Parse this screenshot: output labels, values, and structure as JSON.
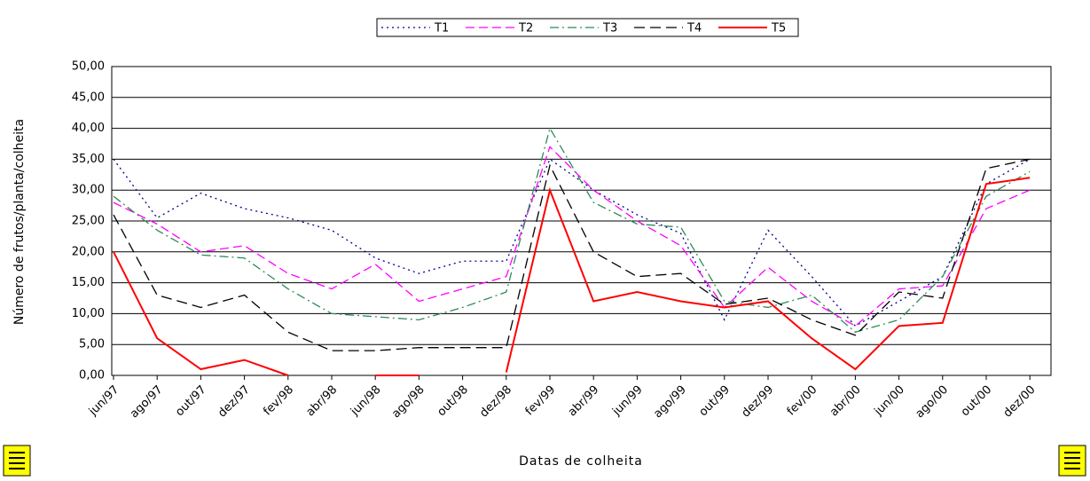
{
  "chart_data": {
    "type": "line",
    "x_label": "Datas de colheita",
    "y_label": "Número de frutos/planta/colheita",
    "categories": [
      "jun/97",
      "ago/97",
      "out/97",
      "dez/97",
      "fev/98",
      "abr/98",
      "jun/98",
      "ago/98",
      "out/98",
      "dez/98",
      "fev/99",
      "abr/99",
      "jun/99",
      "ago/99",
      "out/99",
      "dez/99",
      "fev/00",
      "abr/00",
      "jun/00",
      "ago/00",
      "out/00",
      "dez/00"
    ],
    "series": [
      {
        "name": "T1",
        "color": "#00008b",
        "dash": "dotted",
        "values": [
          35,
          25.5,
          29.5,
          27,
          25.5,
          23.5,
          19,
          16.5,
          18.5,
          18.5,
          35,
          30,
          26,
          23,
          9,
          23.5,
          16,
          8,
          12,
          16,
          31,
          35
        ]
      },
      {
        "name": "T2",
        "color": "#ff00ff",
        "dash": "dashed",
        "values": [
          28,
          24.5,
          20,
          21,
          16.5,
          14,
          18,
          12,
          14,
          16,
          37,
          30,
          25,
          21,
          11,
          17.5,
          12,
          8,
          14,
          14.5,
          27,
          30
        ]
      },
      {
        "name": "T3",
        "color": "#2e8b57",
        "dash": "dashdot",
        "values": [
          29,
          23.5,
          19.5,
          19,
          14,
          10,
          9.5,
          9,
          11,
          13.5,
          40,
          28,
          24.5,
          24,
          12,
          11,
          13,
          7,
          9,
          16,
          29,
          33
        ]
      },
      {
        "name": "T4",
        "color": "#000000",
        "dash": "longdash",
        "values": [
          26,
          13,
          11,
          13,
          7,
          4,
          4,
          4.5,
          4.5,
          4.5,
          34,
          20,
          16,
          16.5,
          11.5,
          12.5,
          9,
          6.5,
          13.5,
          12.5,
          33.5,
          35
        ]
      },
      {
        "name": "T5",
        "color": "#ff0000",
        "dash": "solid",
        "values": [
          20,
          6,
          1,
          2.5,
          0,
          null,
          0,
          0,
          null,
          0.5,
          30,
          12,
          13.5,
          12,
          11,
          12,
          6,
          1,
          8,
          8.5,
          31,
          32
        ]
      }
    ],
    "ylim": [
      0,
      50
    ],
    "yticks": [
      {
        "value": 0,
        "label": "0,00"
      },
      {
        "value": 5,
        "label": "5,00"
      },
      {
        "value": 10,
        "label": "10,00"
      },
      {
        "value": 15,
        "label": "15,00"
      },
      {
        "value": 20,
        "label": "20,00"
      },
      {
        "value": 25,
        "label": "25,00"
      },
      {
        "value": 30,
        "label": "30,00"
      },
      {
        "value": 35,
        "label": "35,00"
      },
      {
        "value": 40,
        "label": "40,00"
      },
      {
        "value": 45,
        "label": "45,00"
      },
      {
        "value": 50,
        "label": "50,00"
      }
    ],
    "grid": true,
    "legend": "top"
  }
}
